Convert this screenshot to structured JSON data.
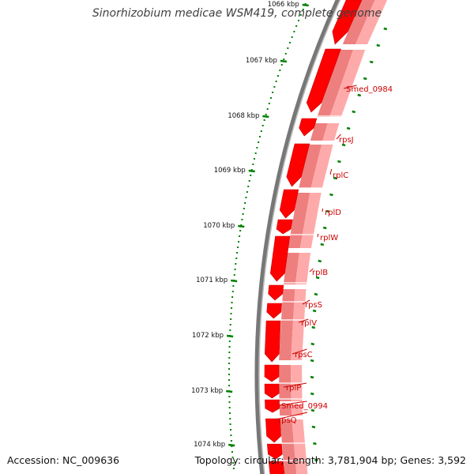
{
  "title": "Sinorhizobium medicae WSM419, complete genome",
  "footer": {
    "accession": "Accession: NC_009636",
    "stats": "Topology: circular; Length: 3,781,904 bp; Genes: 3,592"
  },
  "colors": {
    "cds_forward": "#ff0000",
    "cds_light": "#ee7f7f",
    "cds_light_2": "#ffaaaa",
    "backbone": "#777777",
    "tick": "#008000",
    "label": "#cc0000"
  },
  "scale_ticks": [
    {
      "label": "1066 kbp"
    },
    {
      "label": "1067 kbp"
    },
    {
      "label": "1068 kbp"
    },
    {
      "label": "1069 kbp"
    },
    {
      "label": "1070 kbp"
    },
    {
      "label": "1071 kbp"
    },
    {
      "label": "1072 kbp"
    },
    {
      "label": "1073 kbp"
    },
    {
      "label": "1074 kbp"
    }
  ],
  "gene_labels": [
    {
      "name": "Smed_0984"
    },
    {
      "name": "rpsJ"
    },
    {
      "name": "rplC"
    },
    {
      "name": "rplD"
    },
    {
      "name": "rplW"
    },
    {
      "name": "rplB"
    },
    {
      "name": "rpsS"
    },
    {
      "name": "rplV"
    },
    {
      "name": "rpsC"
    },
    {
      "name": "rplP"
    },
    {
      "name": "Smed_0994"
    },
    {
      "name": "rpsQ"
    }
  ]
}
